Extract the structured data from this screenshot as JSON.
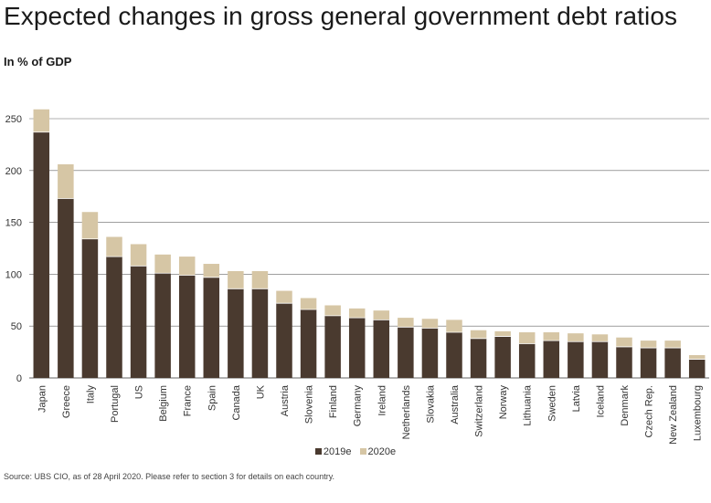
{
  "title": "Expected changes in gross general government debt ratios",
  "subtitle": "In % of GDP",
  "source": "Source: UBS CIO, as of 28 April 2020. Please refer to section 3 for details on each country.",
  "colors": {
    "s2019": "#4a3a2f",
    "s2020": "#d6c6a5",
    "grid": "#666666"
  },
  "chart_data": {
    "type": "bar",
    "stacked": true,
    "categories": [
      "Japan",
      "Greece",
      "Italy",
      "Portugal",
      "US",
      "Belgium",
      "France",
      "Spain",
      "Canada",
      "UK",
      "Austria",
      "Slovenia",
      "Finland",
      "Germany",
      "Ireland",
      "Netherlands",
      "Slovakia",
      "Australia",
      "Switzerland",
      "Norway",
      "Lithuania",
      "Sweden",
      "Latvia",
      "Iceland",
      "Denmark",
      "Czech Rep.",
      "New Zealand",
      "Luxembourg"
    ],
    "series": [
      {
        "name": "2019e",
        "values": [
          237,
          173,
          134,
          117,
          108,
          101,
          99,
          97,
          86,
          86,
          72,
          66,
          60,
          58,
          56,
          49,
          48,
          44,
          38,
          40,
          33,
          36,
          35,
          35,
          30,
          29,
          29,
          18
        ]
      },
      {
        "name": "2020e",
        "values": [
          22,
          33,
          26,
          19,
          21,
          18,
          18,
          13,
          17,
          17,
          12,
          11,
          10,
          9,
          9,
          9,
          9,
          12,
          8,
          5,
          11,
          8,
          8,
          7,
          9,
          7,
          7,
          4
        ]
      }
    ],
    "ylim": [
      0,
      260
    ],
    "yticks": [
      0,
      50,
      100,
      150,
      200,
      250
    ],
    "grid": true,
    "legend": "bottom-center"
  }
}
